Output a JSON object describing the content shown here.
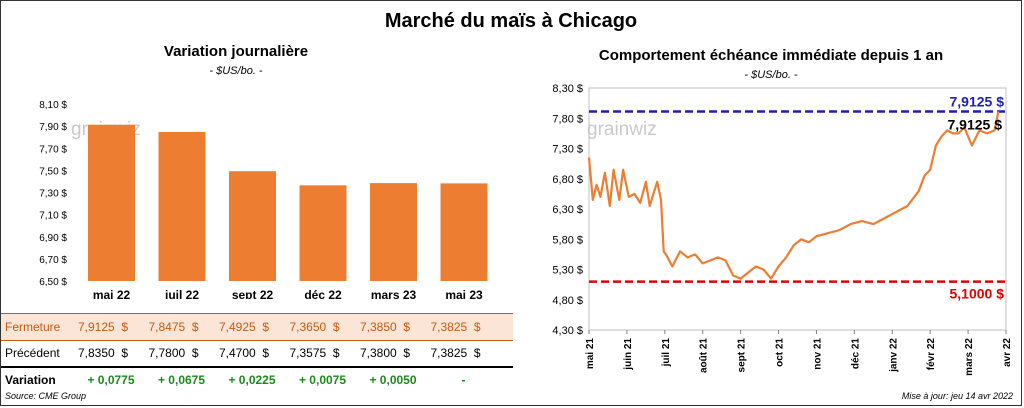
{
  "title": "Marché du maïs à Chicago",
  "left": {
    "title": "Variation  journalière",
    "unit": "- $US/bo. -",
    "watermark": "grainwiz",
    "table": {
      "row_labels": {
        "fermeture": "Fermeture",
        "precedent": "Précédent",
        "variation": "Variation"
      },
      "fermeture": [
        "7,9125  $",
        "7,8475  $",
        "7,4925  $",
        "7,3650  $",
        "7,3850  $",
        "7,3825  $"
      ],
      "precedent": [
        "7,8350  $",
        "7,7800  $",
        "7,4700  $",
        "7,3575  $",
        "7,3800  $",
        "7,3825  $"
      ],
      "variation": [
        "+ 0,0775",
        "+ 0,0675",
        "+ 0,0225",
        "+ 0,0075",
        "+ 0,0050",
        "-"
      ]
    }
  },
  "right": {
    "title": "Comportement  échéance immédiate depuis 1 an",
    "unit": "- $US/bo. -",
    "watermark": "grainwiz",
    "max_label": "7,9125 $",
    "min_label": "5,1000 $",
    "last_label": "7,9125 $"
  },
  "source": "Source: CME Group",
  "updated": "Mise à jour: jeu 14 avr 2022",
  "colors": {
    "bar": "#ed7d31",
    "line": "#ed7d31",
    "max_line": "#1f1fb4",
    "min_line": "#e00000",
    "positive": "#1a8a1a"
  },
  "chart_data": [
    {
      "type": "bar",
      "categories": [
        "mai 22",
        "juil 22",
        "sept 22",
        "déc 22",
        "mars 23",
        "mai 23"
      ],
      "values": [
        7.9125,
        7.8475,
        7.4925,
        7.365,
        7.385,
        7.3825
      ],
      "ylim": [
        6.5,
        8.1
      ],
      "yticks": [
        6.5,
        6.7,
        6.9,
        7.1,
        7.3,
        7.5,
        7.7,
        7.9,
        8.1
      ],
      "ytick_labels": [
        "6,50 $",
        "6,70 $",
        "6,90 $",
        "7,10 $",
        "7,30 $",
        "7,50 $",
        "7,70 $",
        "7,90 $",
        "8,10 $"
      ],
      "grid": false
    },
    {
      "type": "line",
      "xlabels": [
        "mai 21",
        "juin 21",
        "juil 21",
        "août 21",
        "sept 21",
        "oct 21",
        "nov 21",
        "déc 21",
        "janv 22",
        "févr 22",
        "mars 22",
        "avr 22"
      ],
      "ylim": [
        4.3,
        8.3
      ],
      "yticks": [
        4.3,
        4.8,
        5.3,
        5.8,
        6.3,
        6.8,
        7.3,
        7.8,
        8.3
      ],
      "ytick_labels": [
        "4,30 $",
        "4,80 $",
        "5,30 $",
        "5,80 $",
        "6,30 $",
        "6,80 $",
        "7,30 $",
        "7,80 $",
        "8,30 $"
      ],
      "max": 7.9125,
      "min": 5.1,
      "x": [
        0,
        0.1,
        0.2,
        0.3,
        0.42,
        0.55,
        0.65,
        0.8,
        0.9,
        1.05,
        1.2,
        1.35,
        1.5,
        1.6,
        1.7,
        1.8,
        1.9,
        1.97,
        2.03,
        2.2,
        2.4,
        2.6,
        2.8,
        3.0,
        3.2,
        3.4,
        3.6,
        3.8,
        4.0,
        4.2,
        4.4,
        4.6,
        4.8,
        5.0,
        5.2,
        5.4,
        5.6,
        5.8,
        6.0,
        6.3,
        6.6,
        6.9,
        7.2,
        7.5,
        7.8,
        8.1,
        8.4,
        8.7,
        8.85,
        9.0,
        9.15,
        9.3,
        9.45,
        9.6,
        9.75,
        9.9,
        10.1,
        10.3,
        10.5,
        10.7,
        10.8
      ],
      "y": [
        7.15,
        6.45,
        6.7,
        6.5,
        6.9,
        6.35,
        6.95,
        6.45,
        6.95,
        6.5,
        6.55,
        6.4,
        6.75,
        6.35,
        6.55,
        6.75,
        6.45,
        5.6,
        5.55,
        5.35,
        5.6,
        5.5,
        5.55,
        5.4,
        5.45,
        5.5,
        5.45,
        5.2,
        5.15,
        5.25,
        5.35,
        5.3,
        5.15,
        5.35,
        5.5,
        5.7,
        5.8,
        5.75,
        5.85,
        5.9,
        5.95,
        6.05,
        6.1,
        6.05,
        6.15,
        6.25,
        6.35,
        6.6,
        6.85,
        6.95,
        7.35,
        7.5,
        7.6,
        7.55,
        7.55,
        7.65,
        7.35,
        7.6,
        7.55,
        7.6,
        7.9125
      ]
    }
  ]
}
